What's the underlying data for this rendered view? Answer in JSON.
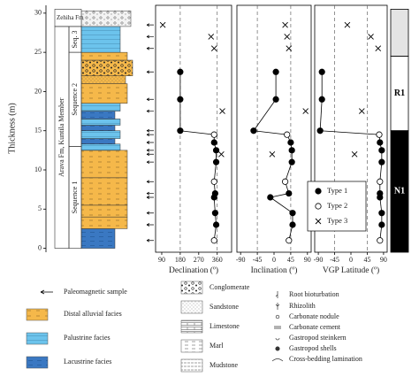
{
  "y_axis": {
    "label": "Thickness (m)",
    "ylim": [
      -0.5,
      31
    ],
    "yticks": [
      0,
      5,
      10,
      15,
      20,
      25,
      30
    ]
  },
  "column": {
    "units": [
      {
        "label": "Zehiha Fm",
        "bottom": 28.3,
        "top": 30.5
      },
      {
        "label": "Arava Fm, Kuntila Member",
        "bottom": 0,
        "top": 28.3
      },
      {
        "label": "Seq. 3",
        "bottom": 25,
        "top": 28.3
      },
      {
        "label": "Sequence 2",
        "bottom": 13,
        "top": 25
      },
      {
        "label": "Sequence 1",
        "bottom": 0,
        "top": 13
      }
    ],
    "layers": [
      {
        "bottom": 0,
        "top": 2.5,
        "pattern": "lacustrine"
      },
      {
        "bottom": 2.5,
        "top": 4,
        "pattern": "distal"
      },
      {
        "bottom": 4,
        "top": 5.5,
        "pattern": "distal"
      },
      {
        "bottom": 5.5,
        "top": 9,
        "pattern": "distal"
      },
      {
        "bottom": 9,
        "top": 12.5,
        "pattern": "distal"
      },
      {
        "bottom": 12.5,
        "top": 13.3,
        "pattern": "palustrine"
      },
      {
        "bottom": 13.3,
        "top": 14,
        "pattern": "lacustrine"
      },
      {
        "bottom": 14,
        "top": 15,
        "pattern": "palustrine"
      },
      {
        "bottom": 15,
        "top": 15.7,
        "pattern": "lacustrine"
      },
      {
        "bottom": 15.7,
        "top": 16.5,
        "pattern": "palustrine"
      },
      {
        "bottom": 16.5,
        "top": 17.5,
        "pattern": "lacustrine"
      },
      {
        "bottom": 17.5,
        "top": 18.5,
        "pattern": "palustrine"
      },
      {
        "bottom": 18.5,
        "top": 21,
        "pattern": "distal"
      },
      {
        "bottom": 21,
        "top": 22,
        "pattern": "sandstone"
      },
      {
        "bottom": 22,
        "top": 24,
        "pattern": "conglomerate"
      },
      {
        "bottom": 24,
        "top": 25,
        "pattern": "distal"
      },
      {
        "bottom": 25,
        "top": 28.3,
        "pattern": "palustrine"
      },
      {
        "bottom": 28.3,
        "top": 30.3,
        "pattern": "zehiha"
      }
    ]
  },
  "chart_data": [
    {
      "type": "scatter",
      "xlabel": "Declination (º)",
      "xlim": [
        60,
        430
      ],
      "xticks": [
        90,
        180,
        270,
        360
      ],
      "ylim": [
        -0.5,
        31
      ],
      "ref_lines": [
        180,
        360
      ],
      "series": [
        {
          "marker": "filled",
          "connected": true,
          "y": [
            22.5,
            19,
            15,
            13.5,
            12.5,
            11,
            7,
            6.5,
            4.5,
            3
          ],
          "x": [
            180,
            180,
            180,
            345,
            355,
            355,
            350,
            345,
            350,
            355
          ]
        },
        {
          "marker": "open",
          "connected": true,
          "y": [
            14.5,
            8.5,
            1
          ],
          "x": [
            345,
            345,
            345
          ]
        },
        {
          "marker": "cross",
          "connected": false,
          "y": [
            28.5,
            27,
            25.5,
            17.5,
            12
          ],
          "x": [
            95,
            330,
            345,
            385,
            380
          ]
        }
      ]
    },
    {
      "type": "scatter",
      "xlabel": "Inclination (º)",
      "xlim": [
        -100,
        100
      ],
      "xticks": [
        -90,
        -45,
        0,
        45,
        90
      ],
      "ylim": [
        -0.5,
        31
      ],
      "ref_lines": [
        -45,
        45
      ],
      "series": [
        {
          "marker": "filled",
          "connected": true,
          "y": [
            22.5,
            19,
            15,
            13.5,
            12.5,
            11,
            7,
            6.5,
            4.5,
            3
          ],
          "x": [
            5,
            5,
            -55,
            45,
            48,
            48,
            40,
            -10,
            50,
            50
          ]
        },
        {
          "marker": "open",
          "connected": true,
          "y": [
            14.5,
            8.5,
            1
          ],
          "x": [
            35,
            30,
            40
          ]
        },
        {
          "marker": "cross",
          "connected": false,
          "y": [
            28.5,
            27,
            25.5,
            17.5,
            12
          ],
          "x": [
            30,
            35,
            40,
            85,
            -5
          ]
        }
      ]
    },
    {
      "type": "scatter",
      "xlabel": "VGP Latitude (º)",
      "xlim": [
        -100,
        100
      ],
      "xticks": [
        -90,
        -45,
        0,
        45,
        90
      ],
      "ylim": [
        -0.5,
        31
      ],
      "ref_lines": [
        -45,
        45
      ],
      "series": [
        {
          "name": "Type 1",
          "marker": "filled",
          "connected": true,
          "y": [
            22.5,
            19,
            15,
            13.5,
            12.5,
            11,
            7,
            6.5,
            4.5,
            3
          ],
          "x": [
            -80,
            -80,
            -85,
            80,
            85,
            85,
            80,
            80,
            85,
            85
          ]
        },
        {
          "name": "Type 2",
          "marker": "open",
          "connected": true,
          "y": [
            14.5,
            8.5,
            1
          ],
          "x": [
            78,
            80,
            80
          ]
        },
        {
          "name": "Type 3",
          "marker": "cross",
          "connected": false,
          "y": [
            28.5,
            27,
            25.5,
            17.5,
            12
          ],
          "x": [
            -10,
            55,
            75,
            30,
            10
          ]
        }
      ]
    }
  ],
  "polarity": {
    "zones": [
      {
        "bottom": 24.5,
        "top": 30.5,
        "color": "#e4e4e4"
      },
      {
        "bottom": 15,
        "top": 24.5,
        "color": "#ffffff",
        "label": "R1"
      },
      {
        "bottom": -0.5,
        "top": 15,
        "color": "#000000",
        "label": "N1"
      }
    ]
  },
  "legend": {
    "sample": "Paleomagnetic sample",
    "facies": [
      "Distal alluvial facies",
      "Palustrine facies",
      "Lacustrine facies"
    ],
    "lithology": [
      "Conglomerate",
      "Sandstone",
      "Limestone",
      "Marl",
      "Mudstone"
    ],
    "symbols": [
      "Root bioturbation",
      "Rhizolith",
      "Carbonate nodule",
      "Carbonate cement",
      "Gastropod steinkern",
      "Gastropod shells",
      "Cross-bedding lamination"
    ]
  }
}
